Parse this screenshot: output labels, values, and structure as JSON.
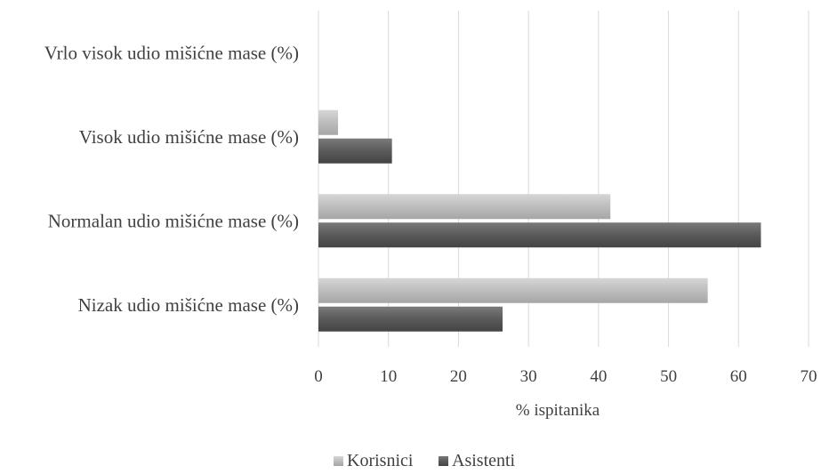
{
  "chart_data": {
    "type": "bar",
    "orientation": "horizontal",
    "categories": [
      "Vrlo visok udio mišićne mase (%)",
      "Visok udio mišićne mase (%)",
      "Normalan udio mišićne mase (%)",
      "Nizak udio mišićne mase (%)"
    ],
    "series": [
      {
        "name": "Korisnici",
        "values": [
          0,
          2.8,
          41.7,
          55.6
        ],
        "color": "#b5b5b5"
      },
      {
        "name": "Asistenti",
        "values": [
          0,
          10.5,
          63.2,
          26.3
        ],
        "color": "#595959"
      }
    ],
    "xlabel": "% ispitanika",
    "ylabel": "",
    "xlim": [
      0,
      70
    ],
    "xticks": [
      "0",
      "10",
      "20",
      "30",
      "40",
      "50",
      "60",
      "70"
    ],
    "grid": "vertical",
    "legend": "bottom-center"
  }
}
